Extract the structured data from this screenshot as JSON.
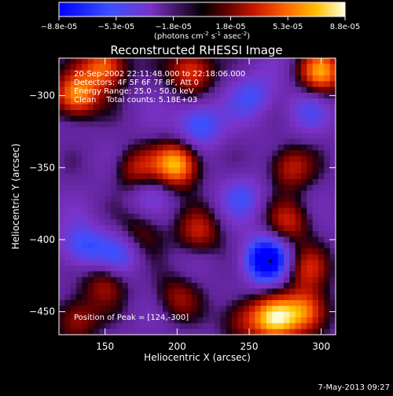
{
  "chart_data": {
    "type": "heatmap",
    "title": "Reconstructed RHESSI Image",
    "xlabel": "Heliocentric X (arcsec)",
    "ylabel": "Heliocentric Y (arcsec)",
    "xlim": [
      118,
      310
    ],
    "ylim": [
      -466,
      -274
    ],
    "x_ticks": [
      150,
      200,
      250,
      300
    ],
    "y_ticks": [
      -300,
      -350,
      -400,
      -450
    ],
    "colorbar": {
      "ticks": [
        "-8.8e-05",
        "-5.3e-05",
        "-1.8e-05",
        "1.8e-05",
        "5.3e-05",
        "8.8e-05"
      ],
      "range": [
        -8.8e-05,
        8.8e-05
      ],
      "units_line": "(photons cm",
      "units_sup1": "-2",
      "units_mid": " s",
      "units_sup2": "-1",
      "units_end": " asec",
      "units_sup3": "-2",
      "units_close": ")"
    },
    "annotations": [
      "20-Sep-2002 22:11:48.000 to 22:18:06.000",
      "Detectors: 4F 5F 6F 7F 8F, Att 0",
      "Energy Range: 25.0 - 50.0 keV",
      "Clean    Total counts: 5.18E+03"
    ],
    "peak_label": "Position of Peak = [124,-300]",
    "peak": [
      124,
      -300
    ],
    "marker": [
      265,
      -415
    ],
    "hotspots": [
      {
        "x": 150,
        "y": -280,
        "v": 0.8
      },
      {
        "x": 130,
        "y": -300,
        "v": 0.9
      },
      {
        "x": 210,
        "y": -283,
        "v": 0.7
      },
      {
        "x": 300,
        "y": -284,
        "v": 0.85
      },
      {
        "x": 200,
        "y": -348,
        "v": 1.0
      },
      {
        "x": 172,
        "y": -352,
        "v": 0.55
      },
      {
        "x": 278,
        "y": -350,
        "v": 0.55
      },
      {
        "x": 215,
        "y": -395,
        "v": 0.5
      },
      {
        "x": 175,
        "y": -395,
        "v": 0.35
      },
      {
        "x": 278,
        "y": -388,
        "v": 0.5
      },
      {
        "x": 290,
        "y": -420,
        "v": 0.5
      },
      {
        "x": 268,
        "y": -455,
        "v": 0.95
      },
      {
        "x": 290,
        "y": -450,
        "v": 0.8
      },
      {
        "x": 150,
        "y": -430,
        "v": 0.45
      },
      {
        "x": 200,
        "y": -440,
        "v": 0.4
      },
      {
        "x": 130,
        "y": -455,
        "v": 0.5
      },
      {
        "x": 245,
        "y": -455,
        "v": 0.45
      }
    ],
    "coldspots": [
      {
        "x": 215,
        "y": -320,
        "v": -0.55
      },
      {
        "x": 252,
        "y": -300,
        "v": -0.4
      },
      {
        "x": 135,
        "y": -405,
        "v": -0.5
      },
      {
        "x": 160,
        "y": -410,
        "v": -0.4
      },
      {
        "x": 180,
        "y": -365,
        "v": -0.3
      },
      {
        "x": 262,
        "y": -414,
        "v": -1.0
      },
      {
        "x": 245,
        "y": -370,
        "v": -0.35
      },
      {
        "x": 290,
        "y": -310,
        "v": -0.3
      }
    ]
  },
  "footer": {
    "date": "7-May-2013 09:27"
  },
  "colors": {
    "background": "#000000",
    "axes": "#ffffff"
  }
}
